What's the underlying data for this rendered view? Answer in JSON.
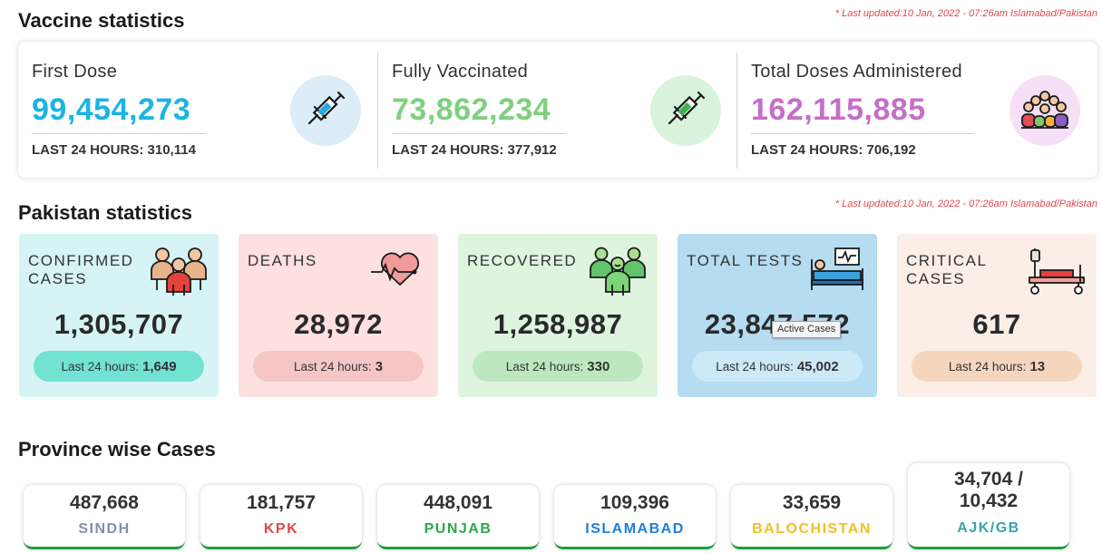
{
  "vaccine": {
    "title": "Vaccine statistics",
    "updated": "* Last updated:10 Jan, 2022 - 07:26am Islamabad/Pakistan",
    "cards": [
      {
        "label": "First Dose",
        "value": "99,454,273",
        "last24": "LAST 24 HOURS: 310,114",
        "color": "#1cb4e3",
        "icon": "syringe-icon"
      },
      {
        "label": "Fully Vaccinated",
        "value": "73,862,234",
        "last24": "LAST 24 HOURS: 377,912",
        "color": "#7ed07e",
        "icon": "syringe-icon"
      },
      {
        "label": "Total Doses Administered",
        "value": "162,115,885",
        "last24": "LAST 24 HOURS: 706,192",
        "color": "#c66ec9",
        "icon": "crowd-icon"
      }
    ]
  },
  "pakistan": {
    "title": "Pakistan statistics",
    "updated": "* Last updated:10 Jan, 2022 - 07:26am Islamabad/Pakistan",
    "pill_prefix": "Last 24 hours:",
    "cards": [
      {
        "label": "CONFIRMED CASES",
        "value": "1,305,707",
        "last24": "1,649",
        "bg": "#d6f4f6",
        "pill": "#72e3d3",
        "icon": "people-icon"
      },
      {
        "label": "DEATHS",
        "value": "28,972",
        "last24": "3",
        "bg": "#fde0e0",
        "pill": "#f6c6c6",
        "icon": "heartbeat-icon"
      },
      {
        "label": "RECOVERED",
        "value": "1,258,987",
        "last24": "330",
        "bg": "#def4df",
        "pill": "#bde8bf",
        "icon": "recovered-people-icon"
      },
      {
        "label": "TOTAL TESTS",
        "value": "23,847,572",
        "last24": "45,002",
        "bg": "#b5dcf0",
        "pill": "#cbe9f7",
        "icon": "hospital-bed-monitor-icon"
      },
      {
        "label": "CRITICAL CASES",
        "value": "617",
        "last24": "13",
        "bg": "#fbeee6",
        "pill": "#f5d6bd",
        "icon": "iv-bed-icon"
      }
    ],
    "tooltip": "Active Cases"
  },
  "province": {
    "title": "Province wise Cases",
    "cards": [
      {
        "value": "487,668",
        "name": "SINDH",
        "color": "#7d91b0"
      },
      {
        "value": "181,757",
        "name": "KPK",
        "color": "#e2464a"
      },
      {
        "value": "448,091",
        "name": "PUNJAB",
        "color": "#2ba84a"
      },
      {
        "value": "109,396",
        "name": "ISLAMABAD",
        "color": "#1d7fd8"
      },
      {
        "value": "33,659",
        "name": "BALOCHISTAN",
        "color": "#f3c024"
      },
      {
        "value": "34,704 / 10,432",
        "name": "AJK/GB",
        "color": "#3aa3b3"
      }
    ]
  }
}
